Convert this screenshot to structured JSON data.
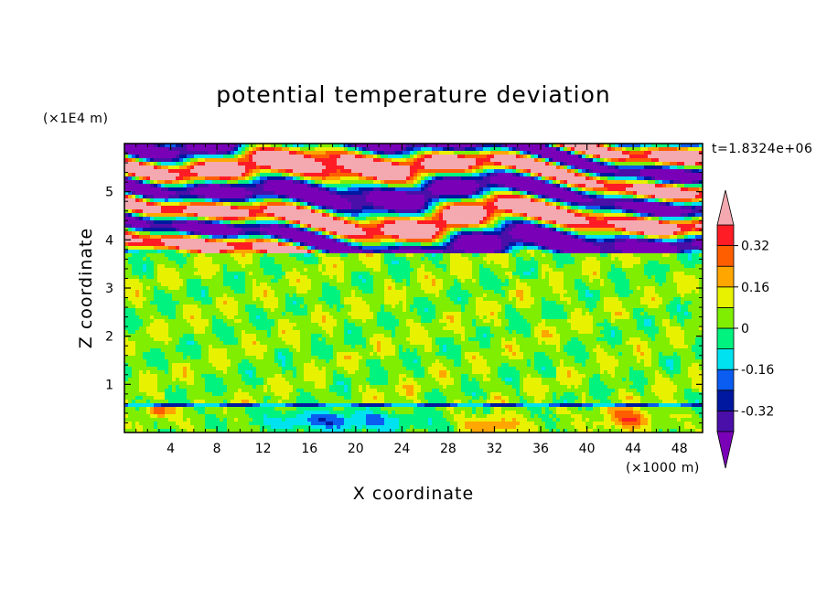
{
  "chart_data": {
    "type": "heatmap",
    "title": "potential temperature deviation",
    "xlabel": "X coordinate",
    "ylabel": "Z coordinate",
    "x_unit": "(×1000 m)",
    "y_unit": "(×1E4 m)",
    "time_label": "t=1.8324e+06",
    "xlim": [
      0,
      50
    ],
    "ylim": [
      0,
      6
    ],
    "x_ticks": [
      4,
      8,
      12,
      16,
      20,
      24,
      28,
      32,
      36,
      40,
      44,
      48
    ],
    "y_ticks": [
      1,
      2,
      3,
      4,
      5
    ],
    "colorbar": {
      "levels": [
        -0.4,
        -0.32,
        -0.24,
        -0.16,
        -0.08,
        0,
        0.08,
        0.16,
        0.24,
        0.32,
        0.4
      ],
      "tick_labels": [
        "-0.32",
        "-0.16",
        "0",
        "0.16",
        "0.32"
      ],
      "tick_values": [
        -0.32,
        -0.16,
        0,
        0.16,
        0.32
      ],
      "colors": [
        "#7a00b8",
        "#4a0fa8",
        "#0018a0",
        "#0b5cf0",
        "#00e2f0",
        "#00f27f",
        "#7fee00",
        "#e8f200",
        "#ffa600",
        "#ff5e00",
        "#ff1c24",
        "#f4a8b0"
      ],
      "extend": "both"
    },
    "regions": [
      {
        "z_range": [
          0,
          0.6
        ],
        "dominant": "mixed cold and warm anomalies",
        "min_value": -0.32,
        "max_value": 0.24
      },
      {
        "z_range": [
          0.6,
          3.75
        ],
        "dominant": "near zero",
        "min_value": -0.08,
        "max_value": 0.08
      },
      {
        "z_range": [
          3.75,
          6
        ],
        "dominant": "alternating strong positive and negative bands",
        "min_value": -0.4,
        "max_value": 0.4
      }
    ]
  }
}
